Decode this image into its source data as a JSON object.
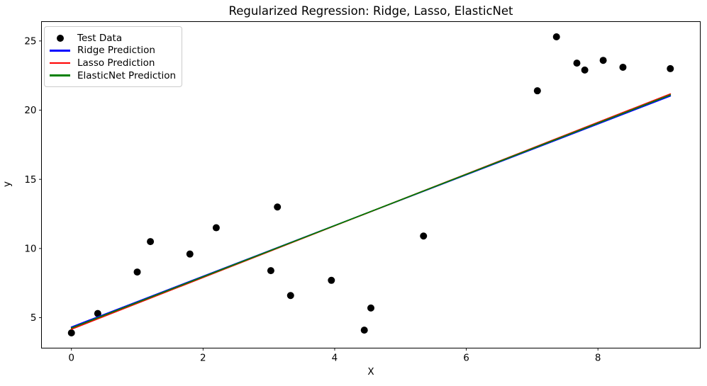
{
  "chart_data": {
    "type": "scatter",
    "title": "Regularized Regression: Ridge, Lasso, ElasticNet",
    "xlabel": "X",
    "ylabel": "y",
    "xlim": [
      -0.455,
      9.555
    ],
    "ylim": [
      2.8,
      26.4
    ],
    "x_ticks": [
      0,
      2,
      4,
      6,
      8
    ],
    "y_ticks": [
      5,
      10,
      15,
      20,
      25
    ],
    "grid": false,
    "background": "#ffffff",
    "axis_color": "#000000",
    "legend": {
      "location": "upper left",
      "edge_color": "#cccccc",
      "entries": [
        {
          "label": "Test Data",
          "marker": "dot",
          "color": "#000000"
        },
        {
          "label": "Ridge Prediction",
          "marker": "line",
          "color": "#0000ff"
        },
        {
          "label": "Lasso Prediction",
          "marker": "line",
          "color": "#ff0000"
        },
        {
          "label": "ElasticNet Prediction",
          "marker": "line",
          "color": "#008000"
        }
      ]
    },
    "series": [
      {
        "name": "Test Data",
        "kind": "scatter",
        "color": "#000000",
        "points": [
          [
            0.0,
            3.9
          ],
          [
            0.4,
            5.3
          ],
          [
            1.0,
            8.3
          ],
          [
            1.2,
            10.5
          ],
          [
            1.8,
            9.6
          ],
          [
            2.2,
            11.5
          ],
          [
            3.03,
            8.4
          ],
          [
            3.13,
            13.0
          ],
          [
            3.33,
            6.6
          ],
          [
            3.95,
            7.7
          ],
          [
            4.45,
            4.1
          ],
          [
            4.55,
            5.7
          ],
          [
            5.35,
            10.9
          ],
          [
            7.08,
            21.4
          ],
          [
            7.37,
            25.3
          ],
          [
            7.68,
            23.4
          ],
          [
            7.8,
            22.9
          ],
          [
            8.08,
            23.6
          ],
          [
            8.38,
            23.1
          ],
          [
            9.1,
            23.0
          ]
        ]
      },
      {
        "name": "Ridge Prediction",
        "kind": "line",
        "color": "#0000ff",
        "points": [
          [
            0.0,
            4.32
          ],
          [
            9.1,
            21.02
          ]
        ]
      },
      {
        "name": "Lasso Prediction",
        "kind": "line",
        "color": "#ff0000",
        "points": [
          [
            0.0,
            4.17
          ],
          [
            9.1,
            21.17
          ]
        ]
      },
      {
        "name": "ElasticNet Prediction",
        "kind": "line",
        "color": "#008000",
        "points": [
          [
            0.0,
            4.25
          ],
          [
            9.1,
            21.1
          ]
        ]
      }
    ]
  }
}
